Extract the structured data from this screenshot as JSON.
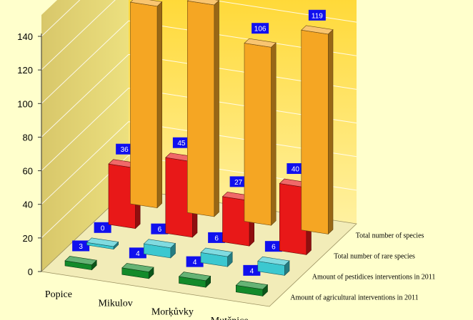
{
  "chart_data": {
    "type": "bar",
    "variant": "3d-grouped",
    "categories": [
      "Popice",
      "Mikulov",
      "Morķůvky",
      "Mutěnice"
    ],
    "series": [
      {
        "name": "Total number of species",
        "values": [
          120,
          126,
          106,
          119
        ],
        "color": "#f5a623"
      },
      {
        "name": "Total number of rare species",
        "values": [
          36,
          45,
          27,
          40
        ],
        "color": "#e81818"
      },
      {
        "name": "Amount of pestidices interventions in 2011",
        "values": [
          0,
          6,
          6,
          6
        ],
        "color": "#3cc8d0"
      },
      {
        "name": "Amount of agricultural interventions in 2011",
        "values": [
          3,
          4,
          4,
          4
        ],
        "color": "#138a2a"
      }
    ],
    "y_ticks": [
      "0",
      "20",
      "40",
      "60",
      "80",
      "100",
      "120",
      "140"
    ],
    "ylim": [
      0,
      140
    ],
    "grid": true,
    "data_labels": true,
    "label_box_color": "#1010ee"
  }
}
